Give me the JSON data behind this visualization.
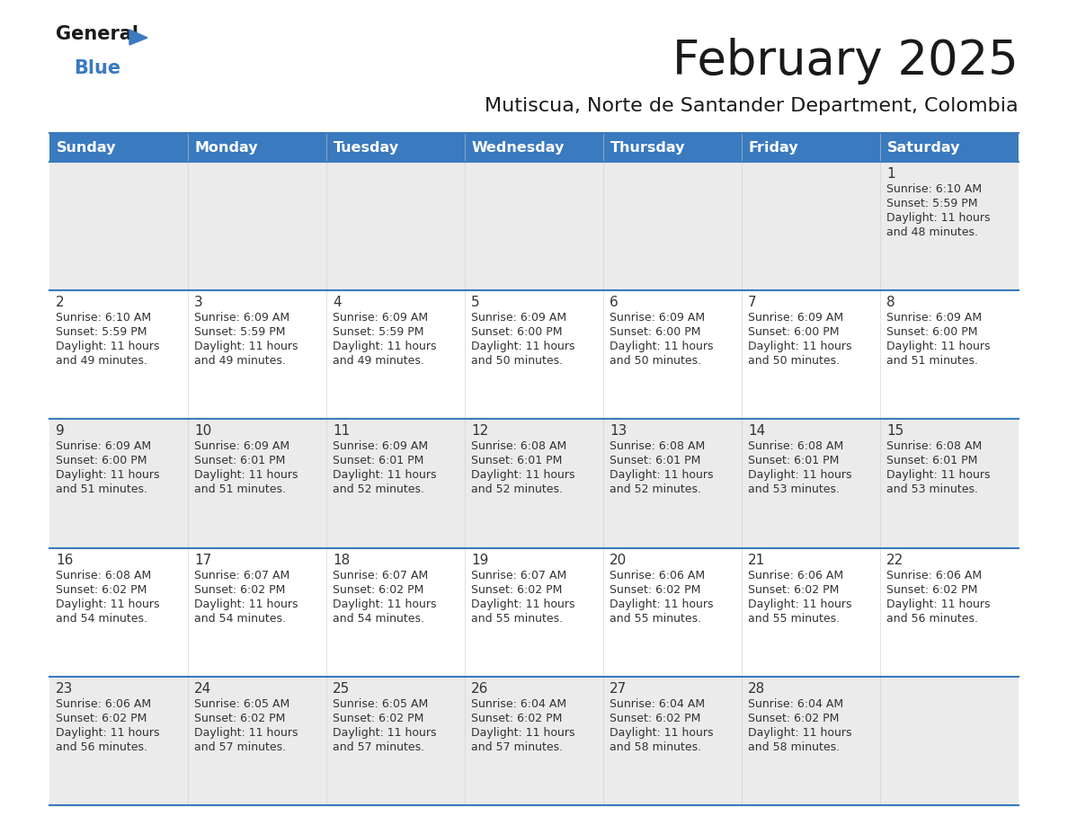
{
  "title": "February 2025",
  "subtitle": "Mutiscua, Norte de Santander Department, Colombia",
  "header_bg": "#3a7abf",
  "header_text": "#ffffff",
  "day_names": [
    "Sunday",
    "Monday",
    "Tuesday",
    "Wednesday",
    "Thursday",
    "Friday",
    "Saturday"
  ],
  "cell_bg_light": "#ebebeb",
  "cell_bg_white": "#ffffff",
  "separator_color": "#3a7abf",
  "text_color": "#333333",
  "day_num_color": "#333333",
  "logo_blue_color": "#3a7abf",
  "days": [
    {
      "date": 1,
      "col": 6,
      "row": 0,
      "sunrise": "6:10 AM",
      "sunset": "5:59 PM",
      "daylight_hrs": "11 hours",
      "daylight_min": "and 48 minutes."
    },
    {
      "date": 2,
      "col": 0,
      "row": 1,
      "sunrise": "6:10 AM",
      "sunset": "5:59 PM",
      "daylight_hrs": "11 hours",
      "daylight_min": "and 49 minutes."
    },
    {
      "date": 3,
      "col": 1,
      "row": 1,
      "sunrise": "6:09 AM",
      "sunset": "5:59 PM",
      "daylight_hrs": "11 hours",
      "daylight_min": "and 49 minutes."
    },
    {
      "date": 4,
      "col": 2,
      "row": 1,
      "sunrise": "6:09 AM",
      "sunset": "5:59 PM",
      "daylight_hrs": "11 hours",
      "daylight_min": "and 49 minutes."
    },
    {
      "date": 5,
      "col": 3,
      "row": 1,
      "sunrise": "6:09 AM",
      "sunset": "6:00 PM",
      "daylight_hrs": "11 hours",
      "daylight_min": "and 50 minutes."
    },
    {
      "date": 6,
      "col": 4,
      "row": 1,
      "sunrise": "6:09 AM",
      "sunset": "6:00 PM",
      "daylight_hrs": "11 hours",
      "daylight_min": "and 50 minutes."
    },
    {
      "date": 7,
      "col": 5,
      "row": 1,
      "sunrise": "6:09 AM",
      "sunset": "6:00 PM",
      "daylight_hrs": "11 hours",
      "daylight_min": "and 50 minutes."
    },
    {
      "date": 8,
      "col": 6,
      "row": 1,
      "sunrise": "6:09 AM",
      "sunset": "6:00 PM",
      "daylight_hrs": "11 hours",
      "daylight_min": "and 51 minutes."
    },
    {
      "date": 9,
      "col": 0,
      "row": 2,
      "sunrise": "6:09 AM",
      "sunset": "6:00 PM",
      "daylight_hrs": "11 hours",
      "daylight_min": "and 51 minutes."
    },
    {
      "date": 10,
      "col": 1,
      "row": 2,
      "sunrise": "6:09 AM",
      "sunset": "6:01 PM",
      "daylight_hrs": "11 hours",
      "daylight_min": "and 51 minutes."
    },
    {
      "date": 11,
      "col": 2,
      "row": 2,
      "sunrise": "6:09 AM",
      "sunset": "6:01 PM",
      "daylight_hrs": "11 hours",
      "daylight_min": "and 52 minutes."
    },
    {
      "date": 12,
      "col": 3,
      "row": 2,
      "sunrise": "6:08 AM",
      "sunset": "6:01 PM",
      "daylight_hrs": "11 hours",
      "daylight_min": "and 52 minutes."
    },
    {
      "date": 13,
      "col": 4,
      "row": 2,
      "sunrise": "6:08 AM",
      "sunset": "6:01 PM",
      "daylight_hrs": "11 hours",
      "daylight_min": "and 52 minutes."
    },
    {
      "date": 14,
      "col": 5,
      "row": 2,
      "sunrise": "6:08 AM",
      "sunset": "6:01 PM",
      "daylight_hrs": "11 hours",
      "daylight_min": "and 53 minutes."
    },
    {
      "date": 15,
      "col": 6,
      "row": 2,
      "sunrise": "6:08 AM",
      "sunset": "6:01 PM",
      "daylight_hrs": "11 hours",
      "daylight_min": "and 53 minutes."
    },
    {
      "date": 16,
      "col": 0,
      "row": 3,
      "sunrise": "6:08 AM",
      "sunset": "6:02 PM",
      "daylight_hrs": "11 hours",
      "daylight_min": "and 54 minutes."
    },
    {
      "date": 17,
      "col": 1,
      "row": 3,
      "sunrise": "6:07 AM",
      "sunset": "6:02 PM",
      "daylight_hrs": "11 hours",
      "daylight_min": "and 54 minutes."
    },
    {
      "date": 18,
      "col": 2,
      "row": 3,
      "sunrise": "6:07 AM",
      "sunset": "6:02 PM",
      "daylight_hrs": "11 hours",
      "daylight_min": "and 54 minutes."
    },
    {
      "date": 19,
      "col": 3,
      "row": 3,
      "sunrise": "6:07 AM",
      "sunset": "6:02 PM",
      "daylight_hrs": "11 hours",
      "daylight_min": "and 55 minutes."
    },
    {
      "date": 20,
      "col": 4,
      "row": 3,
      "sunrise": "6:06 AM",
      "sunset": "6:02 PM",
      "daylight_hrs": "11 hours",
      "daylight_min": "and 55 minutes."
    },
    {
      "date": 21,
      "col": 5,
      "row": 3,
      "sunrise": "6:06 AM",
      "sunset": "6:02 PM",
      "daylight_hrs": "11 hours",
      "daylight_min": "and 55 minutes."
    },
    {
      "date": 22,
      "col": 6,
      "row": 3,
      "sunrise": "6:06 AM",
      "sunset": "6:02 PM",
      "daylight_hrs": "11 hours",
      "daylight_min": "and 56 minutes."
    },
    {
      "date": 23,
      "col": 0,
      "row": 4,
      "sunrise": "6:06 AM",
      "sunset": "6:02 PM",
      "daylight_hrs": "11 hours",
      "daylight_min": "and 56 minutes."
    },
    {
      "date": 24,
      "col": 1,
      "row": 4,
      "sunrise": "6:05 AM",
      "sunset": "6:02 PM",
      "daylight_hrs": "11 hours",
      "daylight_min": "and 57 minutes."
    },
    {
      "date": 25,
      "col": 2,
      "row": 4,
      "sunrise": "6:05 AM",
      "sunset": "6:02 PM",
      "daylight_hrs": "11 hours",
      "daylight_min": "and 57 minutes."
    },
    {
      "date": 26,
      "col": 3,
      "row": 4,
      "sunrise": "6:04 AM",
      "sunset": "6:02 PM",
      "daylight_hrs": "11 hours",
      "daylight_min": "and 57 minutes."
    },
    {
      "date": 27,
      "col": 4,
      "row": 4,
      "sunrise": "6:04 AM",
      "sunset": "6:02 PM",
      "daylight_hrs": "11 hours",
      "daylight_min": "and 58 minutes."
    },
    {
      "date": 28,
      "col": 5,
      "row": 4,
      "sunrise": "6:04 AM",
      "sunset": "6:02 PM",
      "daylight_hrs": "11 hours",
      "daylight_min": "and 58 minutes."
    }
  ]
}
